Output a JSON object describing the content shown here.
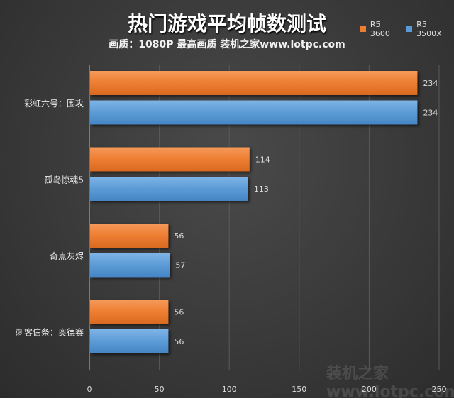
{
  "chart_data": {
    "type": "bar",
    "orientation": "horizontal",
    "title": "热门游戏平均帧数测试",
    "subtitle": "画质：1080P 最高画质 装机之家www.lotpc.com",
    "categories": [
      "彩虹六号：围攻",
      "孤岛惊魂5",
      "奇点灰烬",
      "刺客信条：奥德赛"
    ],
    "series": [
      {
        "name": "R5 3600",
        "color": "#ED7D31",
        "values": [
          234,
          114,
          56,
          56
        ]
      },
      {
        "name": "R5 3500X",
        "color": "#5B9BD5",
        "values": [
          234,
          113,
          57,
          56
        ]
      }
    ],
    "xlim": [
      0,
      250
    ],
    "xticks": [
      "0",
      "50",
      "100",
      "150",
      "200",
      "250"
    ],
    "grid": true,
    "legend": "top-right",
    "watermark": "装机之家 www.lotpc.com"
  }
}
